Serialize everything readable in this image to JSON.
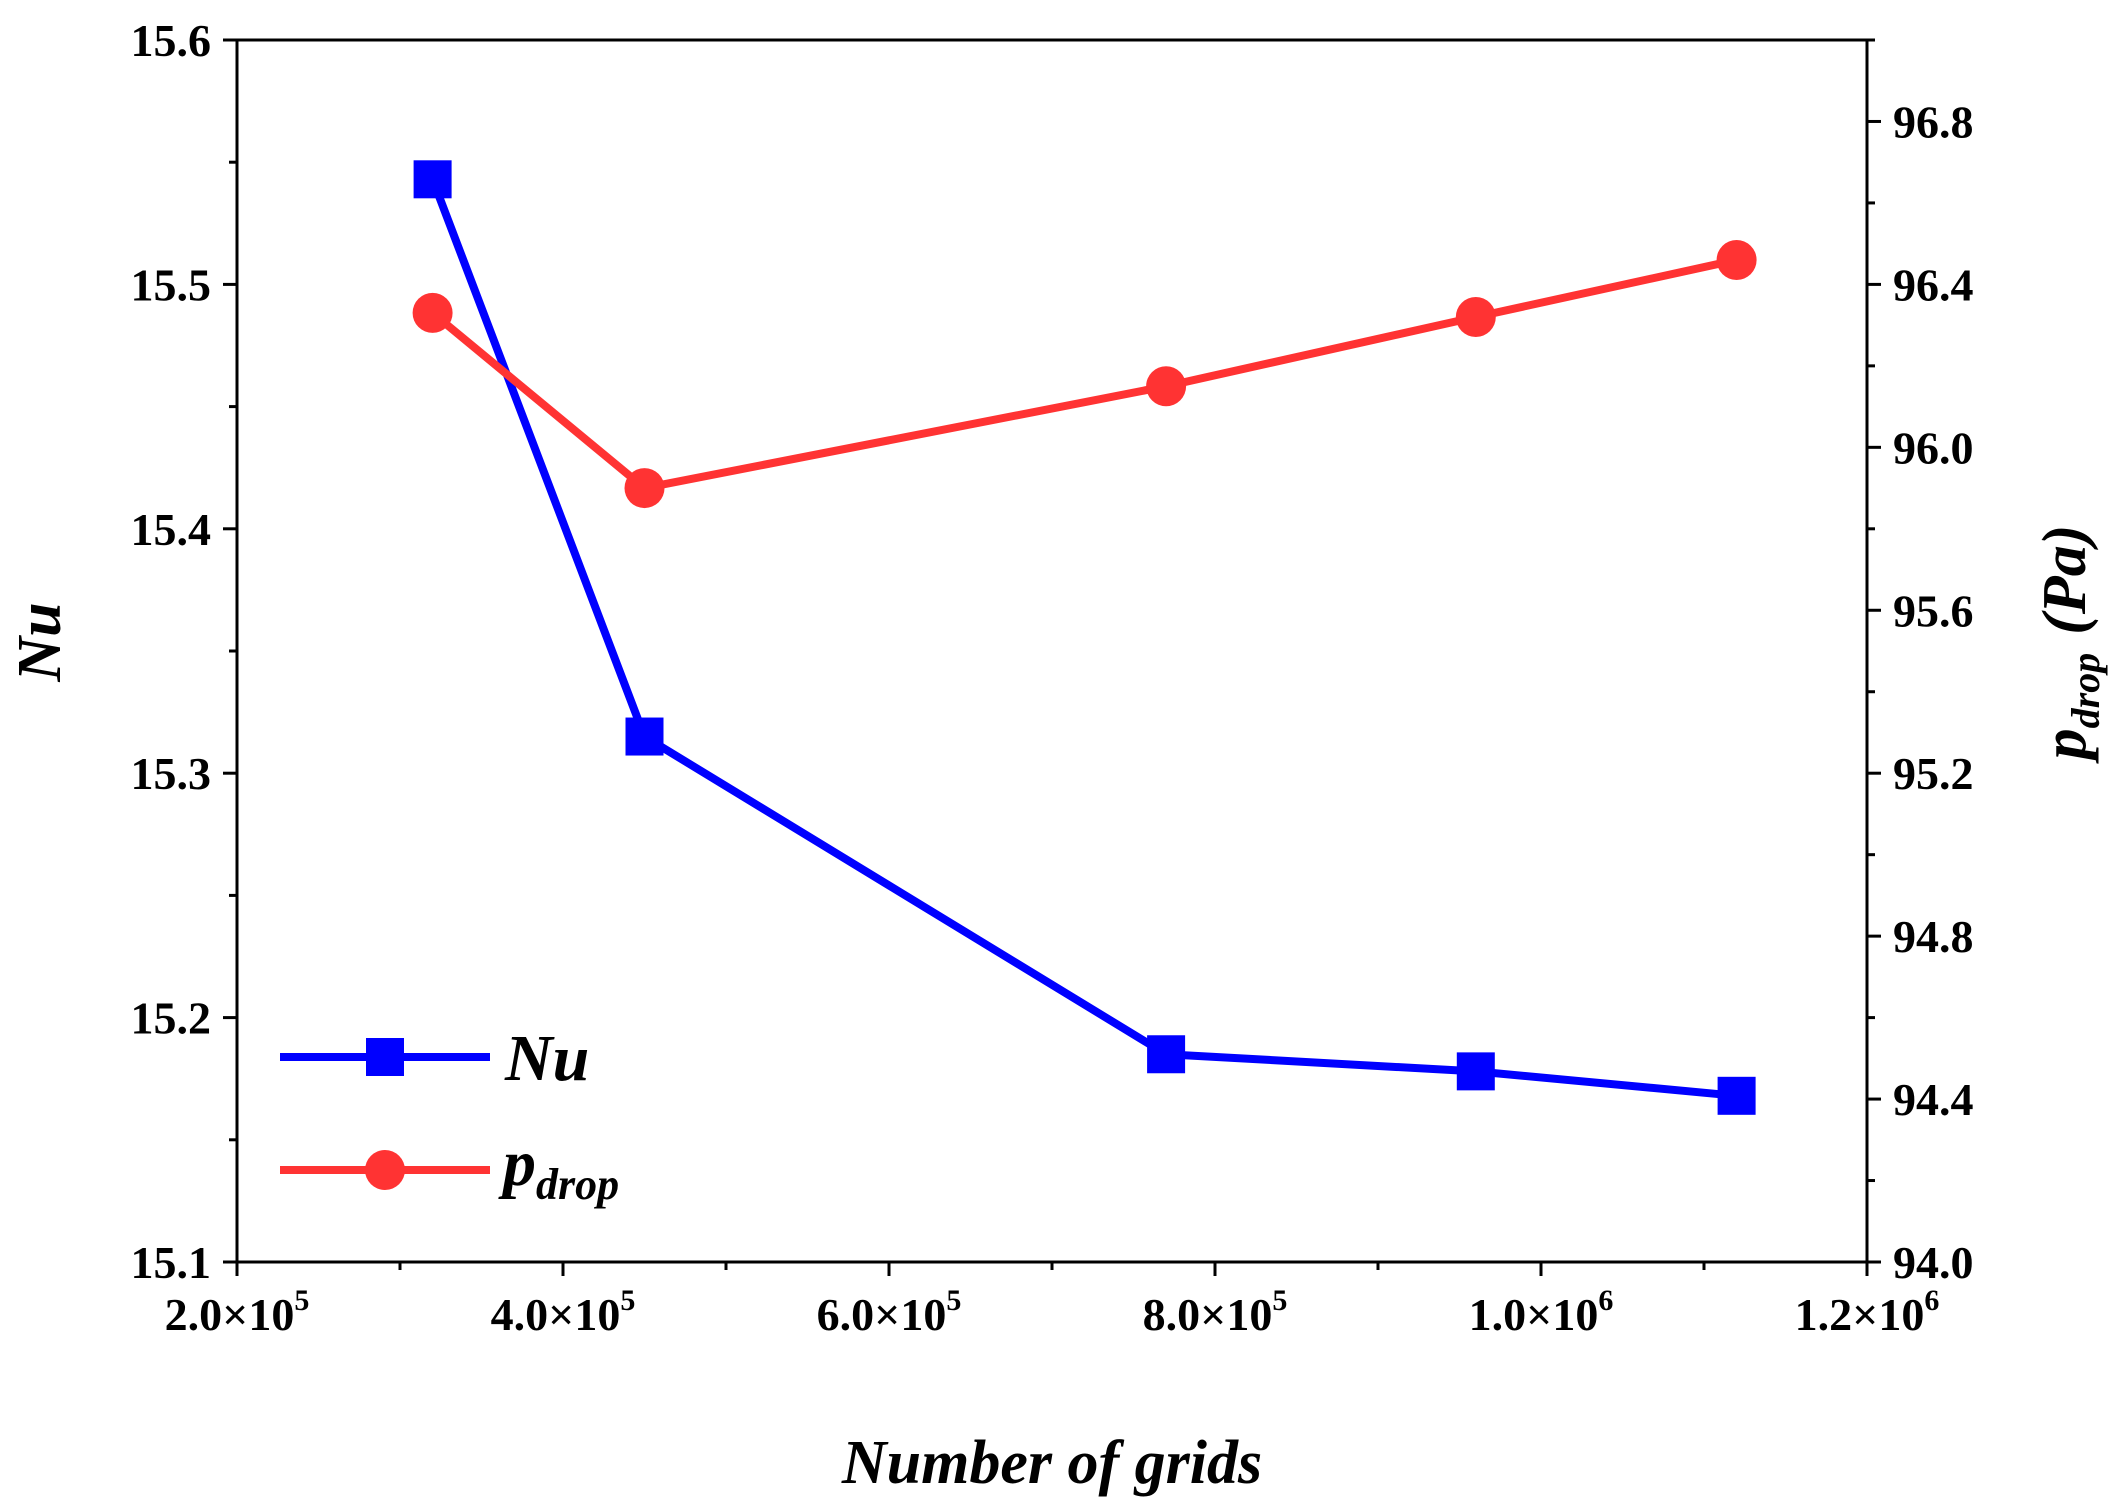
{
  "chart_data": {
    "type": "line",
    "title": "",
    "xlabel": "Number of grids",
    "ylabel_left": "Nu",
    "ylabel_right": {
      "main": "p",
      "sub": "drop",
      "unit": "(Pa)"
    },
    "xlim": [
      200000,
      1200000
    ],
    "ylim_left": [
      15.1,
      15.6
    ],
    "ylim_right": [
      94.0,
      97.0
    ],
    "x_ticks": [
      200000,
      400000,
      600000,
      800000,
      1000000,
      1200000
    ],
    "x_tick_labels": [
      {
        "mant": "2.0×10",
        "exp": "5"
      },
      {
        "mant": "4.0×10",
        "exp": "5"
      },
      {
        "mant": "6.0×10",
        "exp": "5"
      },
      {
        "mant": "8.0×10",
        "exp": "5"
      },
      {
        "mant": "1.0×10",
        "exp": "6"
      },
      {
        "mant": "1.2×10",
        "exp": "6"
      }
    ],
    "y_left_ticks": [
      15.1,
      15.2,
      15.3,
      15.4,
      15.5,
      15.6
    ],
    "y_left_tick_labels": [
      "15.1",
      "15.2",
      "15.3",
      "15.4",
      "15.5",
      "15.6"
    ],
    "y_right_ticks": [
      94.0,
      94.4,
      94.8,
      95.2,
      95.6,
      96.0,
      96.4,
      96.8
    ],
    "y_right_tick_labels": [
      "94.0",
      "94.4",
      "94.8",
      "95.2",
      "95.6",
      "96.0",
      "96.4",
      "96.8"
    ],
    "grid": false,
    "legend_position": "bottom-left",
    "series": [
      {
        "name": "Nu",
        "label": "Nu",
        "axis": "left",
        "color": "#0000ff",
        "marker": "square",
        "x": [
          320000,
          450000,
          770000,
          960000,
          1120000
        ],
        "values": [
          15.543,
          15.315,
          15.185,
          15.178,
          15.168
        ]
      },
      {
        "name": "p_drop",
        "label": {
          "main": "p",
          "sub": "drop"
        },
        "axis": "right",
        "color": "#ff3333",
        "marker": "circle",
        "x": [
          320000,
          450000,
          770000,
          960000,
          1120000
        ],
        "values": [
          96.33,
          95.9,
          96.15,
          96.32,
          96.46
        ]
      }
    ]
  }
}
